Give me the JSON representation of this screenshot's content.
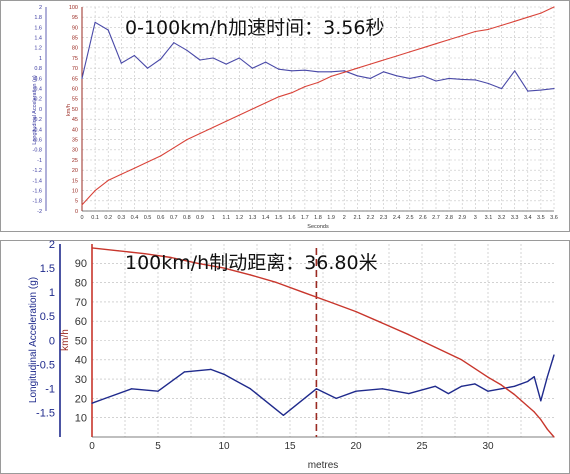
{
  "chart_data": [
    {
      "type": "line",
      "title": "0-100km/h加速时间：3.56秒",
      "xlabel": "Seconds",
      "y_left_label": "Longitudinal Acceleration (g)",
      "y_right_label": "km/h",
      "xlim": [
        0,
        3.6
      ],
      "y_left_lim": [
        -2,
        2
      ],
      "y_right_lim": [
        0,
        100
      ],
      "grid": true,
      "x_ticks": [
        "0",
        "0.1",
        "0.2",
        "0.3",
        "0.4",
        "0.5",
        "0.6",
        "0.7",
        "0.8",
        "0.9",
        "1",
        "1.1",
        "1.2",
        "1.3",
        "1.4",
        "1.5",
        "1.6",
        "1.7",
        "1.8",
        "1.9",
        "2",
        "2.1",
        "2.2",
        "2.3",
        "2.4",
        "2.5",
        "2.6",
        "2.7",
        "2.8",
        "2.9",
        "3",
        "3.1",
        "3.2",
        "3.3",
        "3.4",
        "3.5",
        "3.6"
      ],
      "y_left_ticks": [
        "2",
        "1.8",
        "1.6",
        "1.4",
        "1.2",
        "1",
        "0.8",
        "0.6",
        "0.4",
        "0.2",
        "0",
        "-0.2",
        "-0.4",
        "-0.6",
        "-0.8",
        "-1",
        "-1.2",
        "-1.4",
        "-1.6",
        "-1.8",
        "-2"
      ],
      "y_right_ticks": [
        "100",
        "95",
        "90",
        "85",
        "80",
        "75",
        "70",
        "65",
        "60",
        "55",
        "50",
        "45",
        "40",
        "35",
        "30",
        "25",
        "20",
        "15",
        "10",
        "5",
        "0"
      ],
      "series": [
        {
          "axis": "left",
          "color": "#4a4aa8",
          "x": [
            0,
            0.1,
            0.2,
            0.3,
            0.4,
            0.5,
            0.6,
            0.7,
            0.8,
            0.9,
            1.0,
            1.1,
            1.2,
            1.3,
            1.4,
            1.5,
            1.6,
            1.7,
            1.8,
            1.9,
            2.0,
            2.1,
            2.2,
            2.3,
            2.4,
            2.5,
            2.6,
            2.7,
            2.8,
            2.9,
            3.0,
            3.1,
            3.2,
            3.3,
            3.4,
            3.5,
            3.6
          ],
          "values": [
            0.6,
            1.7,
            1.55,
            0.9,
            1.05,
            0.8,
            0.98,
            1.3,
            1.15,
            0.96,
            1.0,
            0.88,
            1.0,
            0.8,
            0.92,
            0.78,
            0.75,
            0.76,
            0.73,
            0.73,
            0.75,
            0.65,
            0.6,
            0.73,
            0.65,
            0.6,
            0.65,
            0.55,
            0.6,
            0.58,
            0.57,
            0.5,
            0.4,
            0.75,
            0.35,
            0.37,
            0.4
          ]
        },
        {
          "axis": "right",
          "color": "#d9443a",
          "x": [
            0,
            0.1,
            0.2,
            0.3,
            0.4,
            0.5,
            0.6,
            0.7,
            0.8,
            0.9,
            1.0,
            1.1,
            1.2,
            1.3,
            1.4,
            1.5,
            1.6,
            1.7,
            1.8,
            1.9,
            2.0,
            2.1,
            2.2,
            2.3,
            2.4,
            2.5,
            2.6,
            2.7,
            2.8,
            2.9,
            3.0,
            3.1,
            3.2,
            3.3,
            3.4,
            3.5,
            3.6
          ],
          "values": [
            3,
            10,
            15,
            18,
            21,
            24,
            27,
            31,
            35,
            38,
            41,
            44,
            47,
            50,
            53,
            56,
            58,
            61,
            63,
            66,
            68,
            70,
            72,
            74,
            76,
            78,
            80,
            82,
            84,
            86,
            88,
            89,
            91,
            93,
            95,
            97,
            100
          ]
        }
      ]
    },
    {
      "type": "line",
      "title": "100km/h制动距离：36.80米",
      "xlabel": "metres",
      "y_left_label": "Longitudinal Acceleration (g)",
      "y_right_label": "km/h",
      "xlim": [
        0,
        35
      ],
      "y_left_lim": [
        -2,
        2
      ],
      "y_right_lim": [
        0,
        100
      ],
      "grid": true,
      "marker_x": 17,
      "x_ticks": [
        "0",
        "5",
        "10",
        "15",
        "20",
        "25",
        "30"
      ],
      "y_left_ticks": [
        "2",
        "1.5",
        "1",
        "0.5",
        "0",
        "-0.5",
        "-1",
        "-1.5"
      ],
      "y_right_ticks": [
        "90",
        "80",
        "70",
        "60",
        "50",
        "40",
        "30",
        "20",
        "10"
      ],
      "series": [
        {
          "axis": "left",
          "color": "#1f2a8c",
          "x": [
            0,
            1,
            3,
            5,
            7,
            9,
            10,
            12,
            14.5,
            17,
            18.5,
            20,
            22,
            24,
            26,
            27,
            28,
            29,
            30,
            31,
            32,
            33,
            33.5,
            34,
            34.5,
            35
          ],
          "values": [
            -1.3,
            -1.2,
            -1.0,
            -1.05,
            -0.65,
            -0.6,
            -0.7,
            -1.0,
            -1.55,
            -1.0,
            -1.2,
            -1.05,
            -1.0,
            -1.1,
            -0.95,
            -1.1,
            -0.95,
            -0.9,
            -1.05,
            -1.0,
            -0.95,
            -0.85,
            -0.75,
            -1.25,
            -0.75,
            -0.3
          ]
        },
        {
          "axis": "right",
          "color": "#c8362c",
          "x": [
            0,
            2,
            4,
            6,
            8,
            10,
            12,
            14,
            16,
            18,
            20,
            22,
            24,
            26,
            28,
            30,
            31,
            32,
            33,
            33.5,
            34,
            34.5,
            35
          ],
          "values": [
            98,
            96.5,
            95,
            93,
            90,
            87.5,
            84,
            80,
            75,
            70,
            65,
            59,
            53,
            46.5,
            40,
            31,
            27,
            22,
            16,
            13,
            9,
            4,
            0
          ]
        }
      ]
    }
  ]
}
